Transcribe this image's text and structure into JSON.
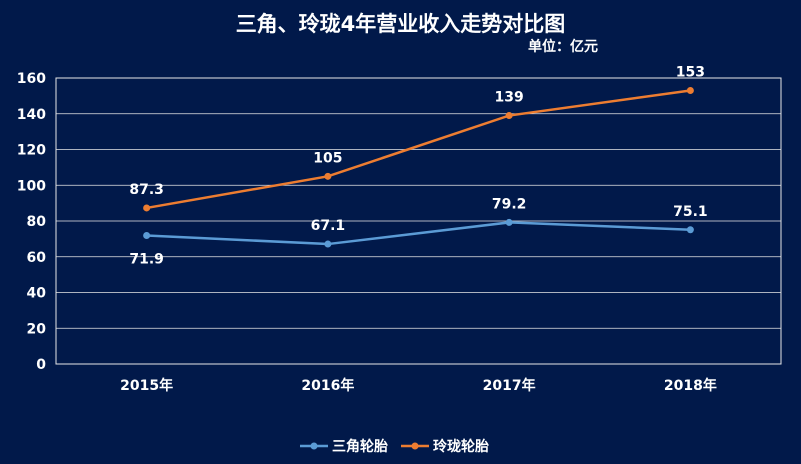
{
  "chart_data": {
    "type": "line",
    "title": "三角、玲珑4年营业收入走势对比图",
    "subtitle": "单位：亿元",
    "categories": [
      "2015年",
      "2016年",
      "2017年",
      "2018年"
    ],
    "series": [
      {
        "name": "三角轮胎",
        "color": "#5b9bd5",
        "values": [
          71.9,
          67.1,
          79.2,
          75.1
        ],
        "labels": [
          "71.9",
          "67.1",
          "79.2",
          "75.1"
        ]
      },
      {
        "name": "玲珑轮胎",
        "color": "#ed7d31",
        "values": [
          87.3,
          105,
          139,
          153
        ],
        "labels": [
          "87.3",
          "105",
          "139",
          "153"
        ]
      }
    ],
    "ylim": [
      0,
      160
    ],
    "yticks": [
      0,
      20,
      40,
      60,
      80,
      100,
      120,
      140,
      160
    ],
    "grid": true,
    "legend": "bottom",
    "xlabel": "",
    "ylabel": ""
  }
}
